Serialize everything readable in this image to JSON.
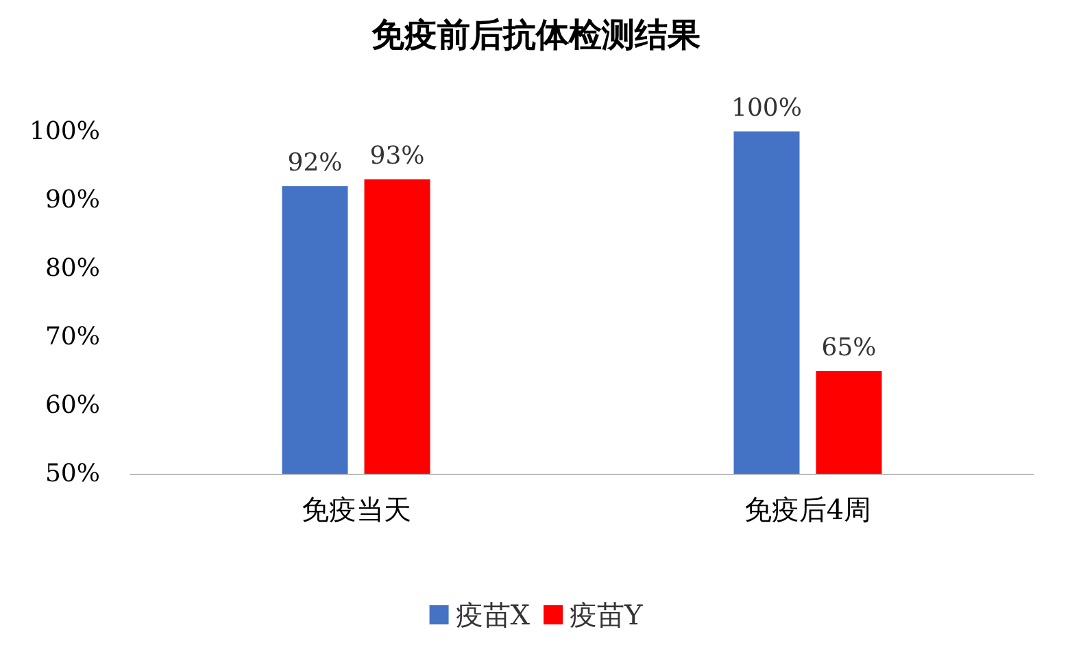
{
  "chart_data": {
    "type": "bar",
    "title": "免疫前后抗体检测结果",
    "categories": [
      "免疫当天",
      "免疫后4周"
    ],
    "series": [
      {
        "name": "疫苗X",
        "color": "#4472c4",
        "values": [
          92,
          100
        ],
        "value_labels": [
          "92%",
          "100%"
        ]
      },
      {
        "name": "疫苗Y",
        "color": "#ff0000",
        "values": [
          93,
          65
        ],
        "value_labels": [
          "93%",
          "65%"
        ]
      }
    ],
    "ylim": [
      50,
      100
    ],
    "yticks": [
      {
        "value": 50,
        "label": "50%"
      },
      {
        "value": 60,
        "label": "60%"
      },
      {
        "value": 70,
        "label": "70%"
      },
      {
        "value": 80,
        "label": "80%"
      },
      {
        "value": 90,
        "label": "90%"
      },
      {
        "value": 100,
        "label": "100%"
      }
    ],
    "grid": false,
    "legend": "bottom"
  }
}
